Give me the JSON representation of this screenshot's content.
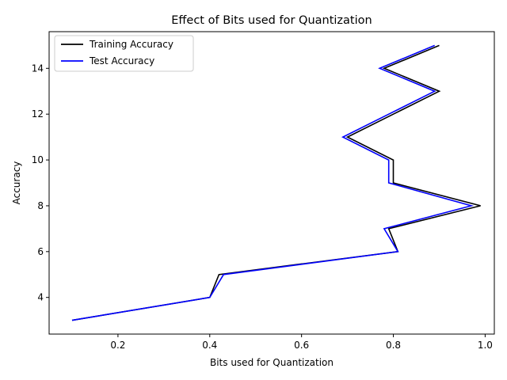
{
  "chart_data": {
    "type": "line",
    "title": "Effect of Bits used for Quantization",
    "xlabel": "Bits used for Quantization",
    "ylabel": "Accuracy",
    "xlim": [
      0.05,
      1.02
    ],
    "ylim": [
      2.4,
      15.6
    ],
    "xticks": [
      0.2,
      0.4,
      0.6,
      0.8,
      1.0
    ],
    "xtick_labels": [
      "0.2",
      "0.4",
      "0.6",
      "0.8",
      "1.0"
    ],
    "yticks": [
      4,
      6,
      8,
      10,
      12,
      14
    ],
    "ytick_labels": [
      "4",
      "6",
      "8",
      "10",
      "12",
      "14"
    ],
    "grid": false,
    "legend_position": "top-left",
    "series": [
      {
        "name": "Training Accuracy",
        "color": "#000000",
        "points": [
          {
            "x": 0.1,
            "y": 3
          },
          {
            "x": 0.4,
            "y": 4
          },
          {
            "x": 0.42,
            "y": 5
          },
          {
            "x": 0.81,
            "y": 6
          },
          {
            "x": 0.79,
            "y": 7
          },
          {
            "x": 0.99,
            "y": 8
          },
          {
            "x": 0.8,
            "y": 9
          },
          {
            "x": 0.8,
            "y": 10
          },
          {
            "x": 0.7,
            "y": 11
          },
          {
            "x": 0.8,
            "y": 12
          },
          {
            "x": 0.9,
            "y": 13
          },
          {
            "x": 0.78,
            "y": 14
          },
          {
            "x": 0.9,
            "y": 15
          }
        ]
      },
      {
        "name": "Test Accuracy",
        "color": "#0000ff",
        "points": [
          {
            "x": 0.1,
            "y": 3
          },
          {
            "x": 0.4,
            "y": 4
          },
          {
            "x": 0.43,
            "y": 5
          },
          {
            "x": 0.81,
            "y": 6
          },
          {
            "x": 0.78,
            "y": 7
          },
          {
            "x": 0.97,
            "y": 8
          },
          {
            "x": 0.79,
            "y": 9
          },
          {
            "x": 0.79,
            "y": 10
          },
          {
            "x": 0.69,
            "y": 11
          },
          {
            "x": 0.79,
            "y": 12
          },
          {
            "x": 0.89,
            "y": 13
          },
          {
            "x": 0.77,
            "y": 14
          },
          {
            "x": 0.89,
            "y": 15
          }
        ]
      }
    ]
  }
}
